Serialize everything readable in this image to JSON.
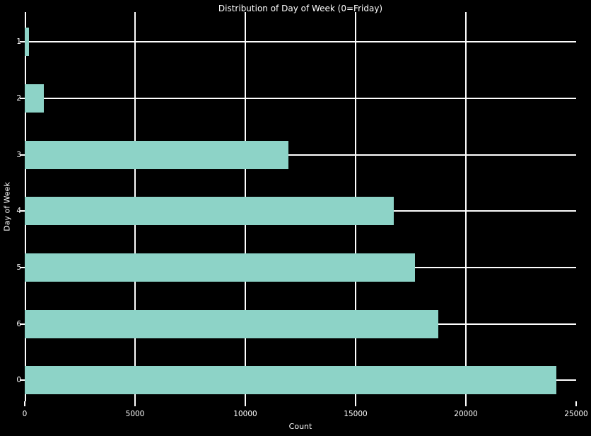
{
  "chart_data": {
    "type": "bar",
    "orientation": "horizontal",
    "title": "Distribution of Day of Week (0=Friday)",
    "xlabel": "Count",
    "ylabel": "Day of Week",
    "categories": [
      "1",
      "2",
      "3",
      "4",
      "5",
      "6",
      "0"
    ],
    "values": [
      200,
      870,
      11970,
      16730,
      17680,
      18740,
      24090
    ],
    "xlim": [
      0,
      25000
    ],
    "xticks": [
      0,
      5000,
      10000,
      15000,
      20000,
      25000
    ],
    "xtick_labels": [
      "0",
      "5000",
      "10000",
      "15000",
      "20000",
      "25000"
    ],
    "grid": true,
    "legend": "none",
    "colors": {
      "background": "#000000",
      "bar": "#8dd3c7",
      "text": "#ffffff",
      "grid": "#ffffff",
      "axis": "#ffffff"
    }
  }
}
